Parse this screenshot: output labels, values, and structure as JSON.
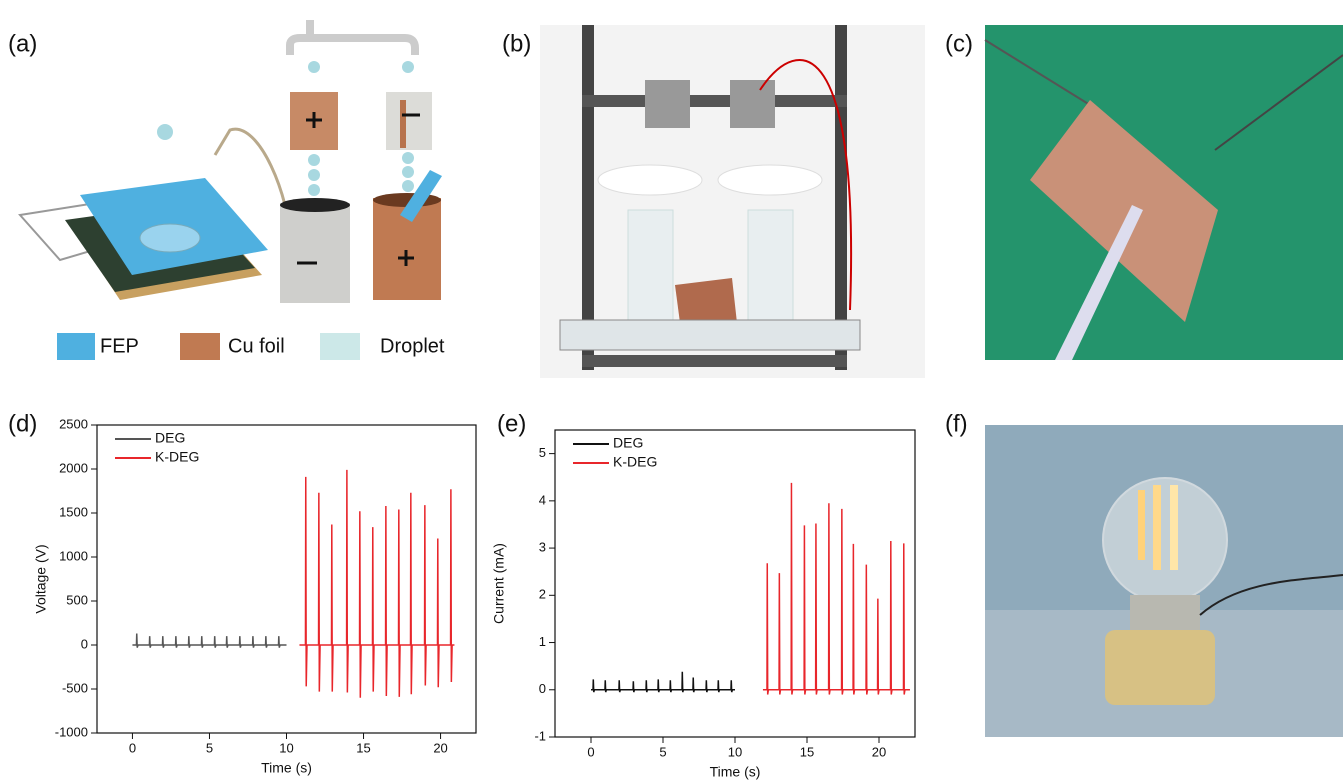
{
  "panels": {
    "labels": [
      "(a)",
      "(b)",
      "(c)",
      "(d)",
      "(e)",
      "(f)"
    ],
    "legend_a": [
      "FEP",
      "Cu foil",
      "Droplet"
    ]
  },
  "chart_data": [
    {
      "type": "line",
      "xlabel": "Time (s)",
      "ylabel": "Voltage (V)",
      "xlim": [
        -2.3,
        22.3
      ],
      "ylim": [
        -1000,
        2500
      ],
      "xticks": [
        0,
        5,
        10,
        15,
        20
      ],
      "yticks": [
        -1000,
        -500,
        0,
        500,
        1000,
        1500,
        2000,
        2500
      ],
      "legend": "upper left",
      "series": [
        {
          "name": "DEG",
          "color": "#555555",
          "x": [
            0,
            0.26,
            0.28,
            0.31,
            0.36,
            1.1,
            1.12,
            1.15,
            1.2,
            1.95,
            1.97,
            2,
            2.05,
            2.8,
            2.82,
            2.85,
            2.9,
            3.64,
            3.66,
            3.69,
            3.74,
            4.48,
            4.5,
            4.53,
            4.58,
            5.32,
            5.34,
            5.37,
            5.42,
            6.1,
            6.12,
            6.15,
            6.2,
            6.95,
            6.97,
            7,
            7.05,
            7.8,
            7.82,
            7.85,
            7.9,
            8.64,
            8.66,
            8.69,
            8.74,
            9.48,
            9.5,
            9.53,
            9.58,
            10
          ],
          "values": [
            0,
            0,
            130,
            -30,
            0,
            0,
            100,
            -30,
            0,
            0,
            100,
            -30,
            0,
            0,
            100,
            -30,
            0,
            0,
            100,
            -30,
            0,
            0,
            100,
            -30,
            0,
            0,
            100,
            -30,
            0,
            0,
            100,
            -30,
            0,
            0,
            100,
            -30,
            0,
            0,
            100,
            -30,
            0,
            0,
            100,
            -30,
            0,
            0,
            100,
            -30,
            0,
            0
          ]
        },
        {
          "name": "K-DEG",
          "color": "#e8262b",
          "x": [
            10.84,
            11.23,
            11.25,
            11.28,
            11.33,
            12.08,
            12.1,
            12.13,
            12.18,
            12.92,
            12.94,
            12.97,
            13.02,
            13.9,
            13.92,
            13.95,
            14,
            14.74,
            14.76,
            14.79,
            14.84,
            15.58,
            15.6,
            15.63,
            15.68,
            16.43,
            16.45,
            16.48,
            16.53,
            17.27,
            17.29,
            17.32,
            17.37,
            18.05,
            18.07,
            18.1,
            18.15,
            18.96,
            18.98,
            19.01,
            19.06,
            19.8,
            19.82,
            19.85,
            19.9,
            20.65,
            20.67,
            20.7,
            20.75,
            20.9
          ],
          "values": [
            0,
            0,
            1910,
            -470,
            0,
            0,
            1730,
            -530,
            0,
            0,
            1370,
            -530,
            0,
            0,
            1990,
            -540,
            0,
            0,
            1520,
            -600,
            0,
            0,
            1340,
            -530,
            0,
            0,
            1580,
            -580,
            0,
            0,
            1540,
            -590,
            0,
            0,
            1730,
            -560,
            0,
            0,
            1590,
            -460,
            0,
            0,
            1210,
            -480,
            0,
            0,
            1770,
            -420,
            0,
            0
          ]
        }
      ]
    },
    {
      "type": "line",
      "xlabel": "Time (s)",
      "ylabel": "Current (mA)",
      "xlim": [
        -2.5,
        22.5
      ],
      "ylim": [
        -1,
        5.5
      ],
      "xticks": [
        0,
        5,
        10,
        15,
        20
      ],
      "yticks": [
        -1,
        0,
        1,
        2,
        3,
        4,
        5
      ],
      "legend": "upper left",
      "series": [
        {
          "name": "DEG",
          "color": "#111111",
          "x": [
            0,
            0.14,
            0.16,
            0.19,
            0.24,
            0.97,
            0.99,
            1.02,
            1.07,
            1.94,
            1.96,
            1.99,
            2.04,
            2.92,
            2.94,
            2.97,
            3.02,
            3.82,
            3.84,
            3.87,
            3.92,
            4.65,
            4.67,
            4.7,
            4.75,
            5.49,
            5.51,
            5.54,
            5.59,
            6.32,
            6.34,
            6.37,
            6.42,
            7.08,
            7.1,
            7.13,
            7.18,
            7.99,
            8.01,
            8.04,
            8.09,
            8.82,
            8.84,
            8.87,
            8.92,
            9.72,
            9.74,
            9.77,
            9.82,
            10
          ],
          "values": [
            0,
            0,
            0.22,
            -0.05,
            0,
            0,
            0.2,
            -0.05,
            0,
            0,
            0.2,
            -0.05,
            0,
            0,
            0.18,
            -0.05,
            0,
            0,
            0.2,
            -0.05,
            0,
            0,
            0.22,
            -0.05,
            0,
            0,
            0.2,
            -0.05,
            0,
            0,
            0.38,
            -0.05,
            0,
            0,
            0.26,
            -0.05,
            0,
            0,
            0.2,
            -0.05,
            0,
            0,
            0.2,
            -0.05,
            0,
            0,
            0.2,
            -0.05,
            0,
            0
          ]
        },
        {
          "name": "K-DEG",
          "color": "#e8262b",
          "x": [
            11.94,
            12.22,
            12.24,
            12.27,
            12.32,
            13.06,
            13.08,
            13.11,
            13.16,
            13.9,
            13.92,
            13.95,
            14,
            14.8,
            14.82,
            14.85,
            14.9,
            15.6,
            15.62,
            15.65,
            15.7,
            16.5,
            16.52,
            16.55,
            16.6,
            17.4,
            17.42,
            17.45,
            17.5,
            18.2,
            18.22,
            18.25,
            18.3,
            19.1,
            19.12,
            19.15,
            19.2,
            19.9,
            19.92,
            19.95,
            20,
            20.8,
            20.82,
            20.85,
            20.9,
            21.7,
            21.72,
            21.75,
            21.8,
            22.15
          ],
          "values": [
            0,
            0,
            2.68,
            -0.1,
            0,
            0,
            2.47,
            -0.1,
            0,
            0,
            4.38,
            -0.1,
            0,
            0,
            3.48,
            -0.1,
            0,
            0,
            3.52,
            -0.1,
            0,
            0,
            3.95,
            -0.1,
            0,
            0,
            3.83,
            -0.1,
            0,
            0,
            3.09,
            -0.1,
            0,
            0,
            2.65,
            -0.1,
            0,
            0,
            1.93,
            -0.1,
            0,
            0,
            3.15,
            -0.1,
            0,
            0,
            3.1,
            -0.1,
            0,
            0
          ]
        }
      ]
    }
  ]
}
